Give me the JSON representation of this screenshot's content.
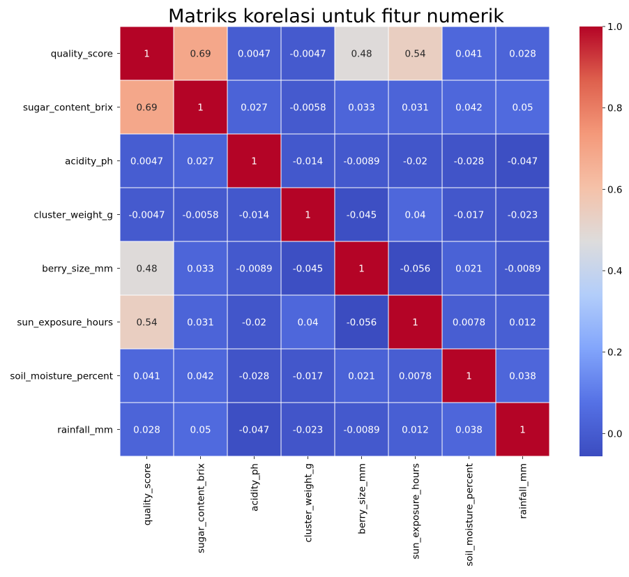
{
  "chart_data": {
    "type": "heatmap",
    "title": "Matriks korelasi untuk fitur numerik",
    "xlabel": "",
    "ylabel": "",
    "colormap": "coolwarm",
    "vmin": -0.056,
    "vmax": 1.0,
    "annotated": true,
    "grid_lines": "white",
    "variables": [
      "quality_score",
      "sugar_content_brix",
      "acidity_ph",
      "cluster_weight_g",
      "berry_size_mm",
      "sun_exposure_hours",
      "soil_moisture_percent",
      "rainfall_mm"
    ],
    "values": [
      [
        1,
        0.69,
        0.0047,
        -0.0047,
        0.48,
        0.54,
        0.041,
        0.028
      ],
      [
        0.69,
        1,
        0.027,
        -0.0058,
        0.033,
        0.031,
        0.042,
        0.05
      ],
      [
        0.0047,
        0.027,
        1,
        -0.014,
        -0.0089,
        -0.02,
        -0.028,
        -0.047
      ],
      [
        -0.0047,
        -0.0058,
        -0.014,
        1,
        -0.045,
        0.04,
        -0.017,
        -0.023
      ],
      [
        0.48,
        0.033,
        -0.0089,
        -0.045,
        1,
        -0.056,
        0.021,
        -0.0089
      ],
      [
        0.54,
        0.031,
        -0.02,
        0.04,
        -0.056,
        1,
        0.0078,
        0.012
      ],
      [
        0.041,
        0.042,
        -0.028,
        -0.017,
        0.021,
        0.0078,
        1,
        0.038
      ],
      [
        0.028,
        0.05,
        -0.047,
        -0.023,
        -0.0089,
        0.012,
        0.038,
        1
      ]
    ],
    "value_labels": [
      [
        "1",
        "0.69",
        "0.0047",
        "-0.0047",
        "0.48",
        "0.54",
        "0.041",
        "0.028"
      ],
      [
        "0.69",
        "1",
        "0.027",
        "-0.0058",
        "0.033",
        "0.031",
        "0.042",
        "0.05"
      ],
      [
        "0.0047",
        "0.027",
        "1",
        "-0.014",
        "-0.0089",
        "-0.02",
        "-0.028",
        "-0.047"
      ],
      [
        "-0.0047",
        "-0.0058",
        "-0.014",
        "1",
        "-0.045",
        "0.04",
        "-0.017",
        "-0.023"
      ],
      [
        "0.48",
        "0.033",
        "-0.0089",
        "-0.045",
        "1",
        "-0.056",
        "0.021",
        "-0.0089"
      ],
      [
        "0.54",
        "0.031",
        "-0.02",
        "0.04",
        "-0.056",
        "1",
        "0.0078",
        "0.012"
      ],
      [
        "0.041",
        "0.042",
        "-0.028",
        "-0.017",
        "0.021",
        "0.0078",
        "1",
        "0.038"
      ],
      [
        "0.028",
        "0.05",
        "-0.047",
        "-0.023",
        "-0.0089",
        "0.012",
        "0.038",
        "1"
      ]
    ],
    "colorbar": {
      "ticks": [
        0.0,
        0.2,
        0.4,
        0.6,
        0.8,
        1.0
      ],
      "tick_labels": [
        "0.0",
        "0.2",
        "0.4",
        "0.6",
        "0.8",
        "1.0"
      ]
    }
  }
}
